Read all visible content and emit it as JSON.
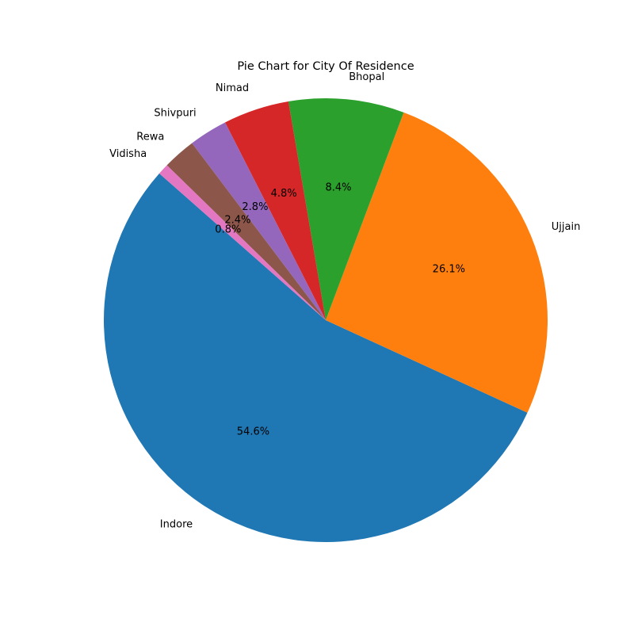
{
  "chart_data": {
    "type": "pie",
    "title": "Pie Chart for City Of Residence",
    "slices": [
      {
        "label": "Indore",
        "value": 54.6,
        "pct_label": "54.6%",
        "color": "#1f77b4"
      },
      {
        "label": "Ujjain",
        "value": 26.1,
        "pct_label": "26.1%",
        "color": "#ff7f0e"
      },
      {
        "label": "Bhopal",
        "value": 8.4,
        "pct_label": "8.4%",
        "color": "#2ca02c"
      },
      {
        "label": "Nimad",
        "value": 4.8,
        "pct_label": "4.8%",
        "color": "#d62728"
      },
      {
        "label": "Shivpuri",
        "value": 2.8,
        "pct_label": "2.8%",
        "color": "#9467bd"
      },
      {
        "label": "Rewa",
        "value": 2.4,
        "pct_label": "2.4%",
        "color": "#8c564b"
      },
      {
        "label": "Vidisha",
        "value": 0.8,
        "pct_label": "0.8%",
        "color": "#e377c2"
      }
    ],
    "start_angle_deg": 138.6,
    "direction": "counterclockwise",
    "legend": "none"
  }
}
